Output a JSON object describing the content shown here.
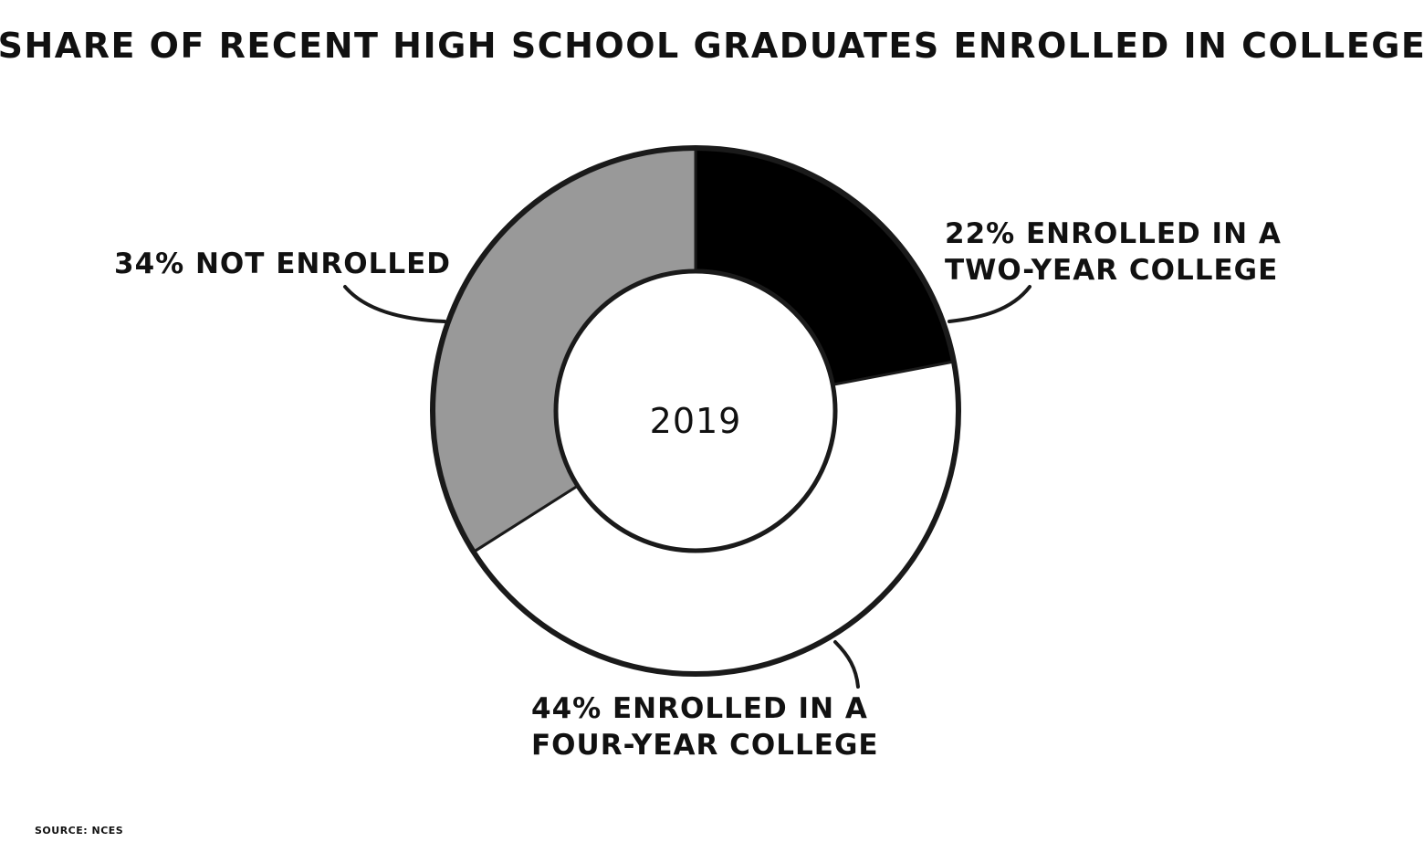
{
  "chart_data": {
    "type": "pie",
    "variant": "donut",
    "title": "SHARE OF RECENT HIGH SCHOOL GRADUATES ENROLLED IN COLLEGE",
    "center_label": "2019",
    "slices": [
      {
        "name": "Enrolled in a two-year college",
        "value": 22,
        "color": "#000000",
        "label_lines": [
          "22% ENROLLED IN A",
          "TWO-YEAR COLLEGE"
        ]
      },
      {
        "name": "Enrolled in a four-year college",
        "value": 44,
        "color": "#ffffff",
        "label_lines": [
          "44% ENROLLED IN A",
          "FOUR-YEAR COLLEGE"
        ]
      },
      {
        "name": "Not enrolled",
        "value": 34,
        "color": "#999999",
        "label_lines": [
          "34% NOT ENROLLED"
        ]
      }
    ],
    "source": "SOURCE: NCES"
  }
}
